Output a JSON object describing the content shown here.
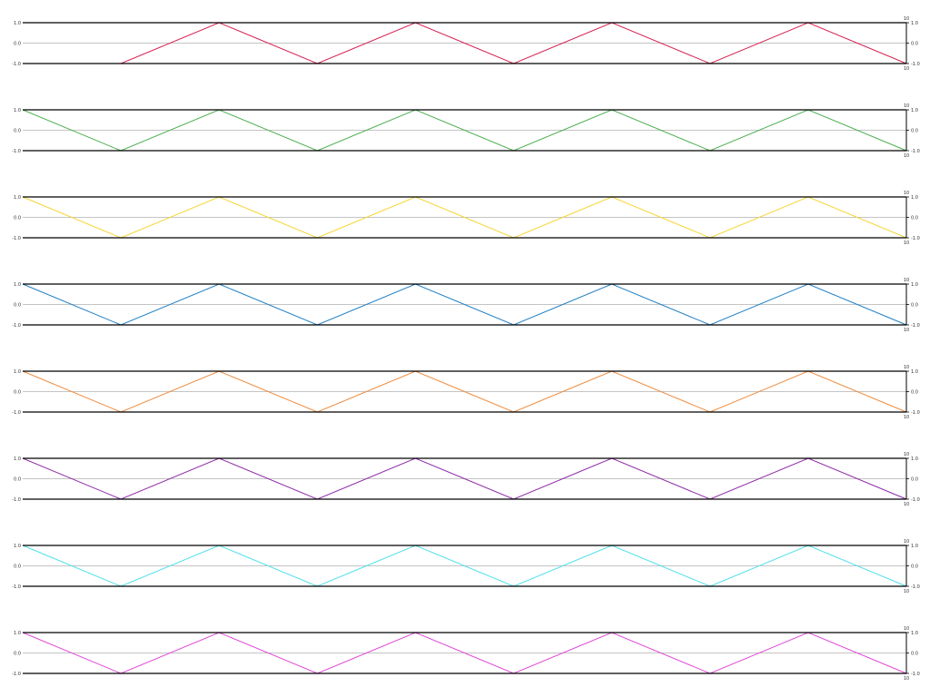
{
  "chart_data": [
    {
      "type": "line",
      "x": [
        0,
        1,
        2,
        3,
        4,
        5,
        6,
        7,
        8,
        9
      ],
      "series": [
        {
          "values": [
            -1,
            -1,
            1,
            -1,
            1,
            -1,
            1,
            -1,
            1,
            -1
          ],
          "color": "#d62050"
        }
      ],
      "ylim": [
        -1,
        1
      ],
      "yticks_left": [
        "1.0",
        "0.0",
        "-1.0"
      ],
      "yticks_right": [
        "1.0",
        "0.0",
        "-1.0"
      ],
      "right_axis_top": "10",
      "right_axis_bottom": "10",
      "grid": "horizontal line at 0.0"
    },
    {
      "type": "line",
      "x": [
        0,
        1,
        2,
        3,
        4,
        5,
        6,
        7,
        8,
        9
      ],
      "series": [
        {
          "values": [
            1,
            -1,
            1,
            -1,
            1,
            -1,
            1,
            -1,
            1,
            -1
          ],
          "color": "#4caf50"
        }
      ],
      "ylim": [
        -1,
        1
      ],
      "yticks_left": [
        "1.0",
        "0.0",
        "-1.0"
      ],
      "yticks_right": [
        "1.0",
        "0.0",
        "-1.0"
      ],
      "right_axis_top": "10",
      "right_axis_bottom": "10",
      "grid": "horizontal line at 0.0"
    },
    {
      "type": "line",
      "x": [
        0,
        1,
        2,
        3,
        4,
        5,
        6,
        7,
        8,
        9
      ],
      "series": [
        {
          "values": [
            1,
            -1,
            1,
            -1,
            1,
            -1,
            1,
            -1,
            1,
            -1
          ],
          "color": "#f5d533"
        }
      ],
      "ylim": [
        -1,
        1
      ],
      "yticks_left": [
        "1.0",
        "0.0",
        "-1.0"
      ],
      "yticks_right": [
        "1.0",
        "0.0",
        "-1.0"
      ],
      "right_axis_top": "10",
      "right_axis_bottom": "10",
      "grid": "horizontal line at 0.0"
    },
    {
      "type": "line",
      "x": [
        0,
        1,
        2,
        3,
        4,
        5,
        6,
        7,
        8,
        9
      ],
      "series": [
        {
          "values": [
            1,
            -1,
            1,
            -1,
            1,
            -1,
            1,
            -1,
            1,
            -1
          ],
          "color": "#1f7fc4"
        }
      ],
      "ylim": [
        -1,
        1
      ],
      "yticks_left": [
        "1.0",
        "0.0",
        "-1.0"
      ],
      "yticks_right": [
        "1.0",
        "0.0",
        "-1.0"
      ],
      "right_axis_top": "10",
      "right_axis_bottom": "10",
      "grid": "horizontal line at 0.0"
    },
    {
      "type": "line",
      "x": [
        0,
        1,
        2,
        3,
        4,
        5,
        6,
        7,
        8,
        9
      ],
      "series": [
        {
          "values": [
            1,
            -1,
            1,
            -1,
            1,
            -1,
            1,
            -1,
            1,
            -1
          ],
          "color": "#f08b3c"
        }
      ],
      "ylim": [
        -1,
        1
      ],
      "yticks_left": [
        "1.0",
        "0.0",
        "-1.0"
      ],
      "yticks_right": [
        "1.0",
        "0.0",
        "-1.0"
      ],
      "right_axis_top": "10",
      "right_axis_bottom": "10",
      "grid": "horizontal line at 0.0"
    },
    {
      "type": "line",
      "x": [
        0,
        1,
        2,
        3,
        4,
        5,
        6,
        7,
        8,
        9
      ],
      "series": [
        {
          "values": [
            1,
            -1,
            1,
            -1,
            1,
            -1,
            1,
            -1,
            1,
            -1
          ],
          "color": "#8e2aa8"
        }
      ],
      "ylim": [
        -1,
        1
      ],
      "yticks_left": [
        "1.0",
        "0.0",
        "-1.0"
      ],
      "yticks_right": [
        "1.0",
        "0.0",
        "-1.0"
      ],
      "right_axis_top": "10",
      "right_axis_bottom": "10",
      "grid": "horizontal line at 0.0"
    },
    {
      "type": "line",
      "x": [
        0,
        1,
        2,
        3,
        4,
        5,
        6,
        7,
        8,
        9
      ],
      "series": [
        {
          "values": [
            1,
            -1,
            1,
            -1,
            1,
            -1,
            1,
            -1,
            1,
            -1
          ],
          "color": "#4fe0ea"
        }
      ],
      "ylim": [
        -1,
        1
      ],
      "yticks_left": [
        "1.0",
        "0.0",
        "-1.0"
      ],
      "yticks_right": [
        "1.0",
        "0.0",
        "-1.0"
      ],
      "right_axis_top": "10",
      "right_axis_bottom": "10",
      "grid": "horizontal line at 0.0"
    },
    {
      "type": "line",
      "x": [
        0,
        1,
        2,
        3,
        4,
        5,
        6,
        7,
        8,
        9
      ],
      "series": [
        {
          "values": [
            1,
            -1,
            1,
            -1,
            1,
            -1,
            1,
            -1,
            1,
            -1
          ],
          "color": "#e048d8"
        }
      ],
      "ylim": [
        -1,
        1
      ],
      "yticks_left": [
        "1.0",
        "0.0",
        "-1.0"
      ],
      "yticks_right": [
        "1.0",
        "0.0",
        "-1.0"
      ],
      "right_axis_top": "10",
      "right_axis_bottom": "10",
      "grid": "horizontal line at 0.0"
    }
  ]
}
